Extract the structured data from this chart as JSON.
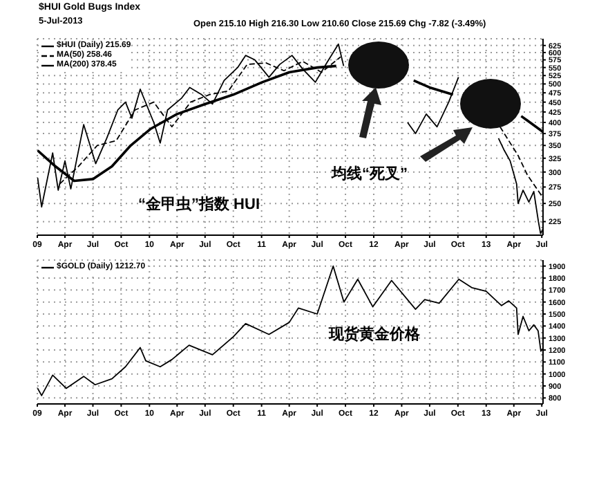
{
  "chart_data": [
    {
      "type": "line",
      "title": "$HUI Gold Bugs Index",
      "subtitle": "5-Jul-2013",
      "annotations": [
        "Open 215.10 High 216.30 Low 210.60 Close 215.69 Chg -7.82 (-3.49%)",
        "“金甲虫”指数 HUI",
        "均线“死叉”"
      ],
      "xlim": [
        "2009-01-01",
        "2013-07-05"
      ],
      "xticks": [
        {
          "value": "2009-01",
          "label": "09"
        },
        {
          "value": "2009-04",
          "label": "Apr"
        },
        {
          "value": "2009-07",
          "label": "Jul"
        },
        {
          "value": "2009-10",
          "label": "Oct"
        },
        {
          "value": "2010-01",
          "label": "10"
        },
        {
          "value": "2010-04",
          "label": "Apr"
        },
        {
          "value": "2010-07",
          "label": "Jul"
        },
        {
          "value": "2010-10",
          "label": "Oct"
        },
        {
          "value": "2011-01",
          "label": "11"
        },
        {
          "value": "2011-04",
          "label": "Apr"
        },
        {
          "value": "2011-07",
          "label": "Jul"
        },
        {
          "value": "2011-10",
          "label": "Oct"
        },
        {
          "value": "2012-01",
          "label": "12"
        },
        {
          "value": "2012-04",
          "label": "Apr"
        },
        {
          "value": "2012-07",
          "label": "Jul"
        },
        {
          "value": "2012-10",
          "label": "Oct"
        },
        {
          "value": "2013-01",
          "label": "13"
        },
        {
          "value": "2013-04",
          "label": "Apr"
        },
        {
          "value": "2013-07",
          "label": "Jul"
        }
      ],
      "ylim": [
        208,
        650
      ],
      "yticks": [
        225,
        250,
        275,
        300,
        325,
        350,
        375,
        400,
        425,
        450,
        475,
        500,
        525,
        550,
        575,
        600,
        625
      ],
      "log": true,
      "grid": true,
      "legend": "top left",
      "marker": "none",
      "series": [
        {
          "name": "$HUI (Daily) 215.69",
          "color": "#000000",
          "line_style": "solid",
          "x": [
            "2009-01-02",
            "2009-01-15",
            "2009-02-20",
            "2009-03-10",
            "2009-04-01",
            "2009-04-20",
            "2009-06-01",
            "2009-07-10",
            "2009-08-15",
            "2009-09-20",
            "2009-10-15",
            "2009-11-05",
            "2009-12-02",
            "2010-01-15",
            "2010-02-05",
            "2010-03-01",
            "2010-04-15",
            "2010-05-12",
            "2010-06-20",
            "2010-07-25",
            "2010-09-01",
            "2010-10-15",
            "2010-11-10",
            "2010-12-10",
            "2011-01-25",
            "2011-03-01",
            "2011-04-10",
            "2011-05-15",
            "2011-06-25",
            "2011-08-01",
            "2011-09-08",
            "2011-09-25",
            "2011-11-15",
            "2012-01-15",
            "2012-03-15",
            "2012-04-20",
            "2012-05-16",
            "2012-06-20",
            "2012-07-25",
            "2012-09-01",
            "2012-10-03",
            "2012-10-25",
            "2012-12-10",
            "2013-01-20",
            "2013-02-10",
            "2013-03-01",
            "2013-03-20",
            "2013-04-10",
            "2013-04-15",
            "2013-05-01",
            "2013-05-20",
            "2013-06-05",
            "2013-06-20",
            "2013-06-27",
            "2013-07-05"
          ],
          "values": [
            290,
            245,
            335,
            270,
            320,
            272,
            395,
            315,
            365,
            430,
            450,
            410,
            485,
            400,
            355,
            430,
            460,
            490,
            470,
            445,
            510,
            550,
            590,
            575,
            520,
            560,
            590,
            545,
            505,
            565,
            630,
            555,
            null,
            null,
            null,
            400,
            375,
            420,
            390,
            450,
            520,
            null,
            null,
            null,
            365,
            340,
            320,
            280,
            250,
            270,
            252,
            268,
            225,
            210,
            215.69
          ]
        },
        {
          "name": "MA(50) 258.46",
          "color": "#000000",
          "line_style": "dashed",
          "x": [
            "2009-03-15",
            "2009-05-15",
            "2009-07-15",
            "2009-09-15",
            "2009-11-15",
            "2010-01-15",
            "2010-03-15",
            "2010-05-15",
            "2010-07-15",
            "2010-09-15",
            "2010-11-15",
            "2011-01-15",
            "2011-03-15",
            "2011-05-15",
            "2011-07-15",
            "2011-09-15",
            "2011-12-01",
            "2013-02-15",
            "2013-04-15",
            "2013-05-15",
            "2013-07-05"
          ],
          "values": [
            280,
            310,
            350,
            360,
            430,
            450,
            390,
            450,
            470,
            480,
            560,
            565,
            540,
            570,
            535,
            585,
            null,
            390,
            330,
            295,
            258.46
          ]
        },
        {
          "name": "MA(200) 378.45",
          "color": "#000000",
          "line_style": "solid",
          "x": [
            "2009-01-02",
            "2009-03-01",
            "2009-05-01",
            "2009-07-01",
            "2009-09-01",
            "2009-11-01",
            "2010-01-04",
            "2010-04-01",
            "2010-07-01",
            "2010-10-01",
            "2011-01-03",
            "2011-04-01",
            "2011-07-01",
            "2011-09-01",
            "2011-12-15",
            "2012-05-10",
            "2012-07-01",
            "2012-09-15",
            "2012-12-15",
            "2013-04-25",
            "2013-07-05"
          ],
          "values": [
            340,
            310,
            285,
            288,
            310,
            350,
            385,
            420,
            445,
            470,
            505,
            535,
            550,
            555,
            null,
            510,
            490,
            470,
            null,
            415,
            378.45
          ]
        }
      ]
    },
    {
      "type": "line",
      "annotations": [
        "现货黄金价格"
      ],
      "xlim": [
        "2009-01-01",
        "2013-07-05"
      ],
      "xticks": [
        {
          "value": "2009-01",
          "label": "09"
        },
        {
          "value": "2009-04",
          "label": "Apr"
        },
        {
          "value": "2009-07",
          "label": "Jul"
        },
        {
          "value": "2009-10",
          "label": "Oct"
        },
        {
          "value": "2010-01",
          "label": "10"
        },
        {
          "value": "2010-04",
          "label": "Apr"
        },
        {
          "value": "2010-07",
          "label": "Jul"
        },
        {
          "value": "2010-10",
          "label": "Oct"
        },
        {
          "value": "2011-01",
          "label": "11"
        },
        {
          "value": "2011-04",
          "label": "Apr"
        },
        {
          "value": "2011-07",
          "label": "Jul"
        },
        {
          "value": "2011-10",
          "label": "Oct"
        },
        {
          "value": "2012-01",
          "label": "12"
        },
        {
          "value": "2012-04",
          "label": "Apr"
        },
        {
          "value": "2012-07",
          "label": "Jul"
        },
        {
          "value": "2012-10",
          "label": "Oct"
        },
        {
          "value": "2013-01",
          "label": "13"
        },
        {
          "value": "2013-04",
          "label": "Apr"
        },
        {
          "value": "2013-07",
          "label": "Jul"
        }
      ],
      "ylim": [
        750,
        1950
      ],
      "yticks": [
        800,
        900,
        1000,
        1100,
        1200,
        1300,
        1400,
        1500,
        1600,
        1700,
        1800,
        1900
      ],
      "grid": true,
      "legend": "top left",
      "marker": "none",
      "series": [
        {
          "name": "$GOLD (Daily) 1212.70",
          "color": "#000000",
          "line_style": "solid",
          "x": [
            "2009-01-02",
            "2009-01-15",
            "2009-02-20",
            "2009-04-05",
            "2009-06-01",
            "2009-07-08",
            "2009-09-01",
            "2009-10-15",
            "2009-12-02",
            "2009-12-20",
            "2010-02-05",
            "2010-03-15",
            "2010-05-10",
            "2010-07-25",
            "2010-10-01",
            "2010-11-10",
            "2011-01-25",
            "2011-04-01",
            "2011-05-01",
            "2011-07-01",
            "2011-08-22",
            "2011-09-26",
            "2011-11-10",
            "2011-12-29",
            "2012-02-28",
            "2012-05-16",
            "2012-06-15",
            "2012-08-01",
            "2012-10-04",
            "2012-11-15",
            "2013-01-01",
            "2013-02-20",
            "2013-03-15",
            "2013-04-10",
            "2013-04-15",
            "2013-05-01",
            "2013-05-20",
            "2013-06-05",
            "2013-06-19",
            "2013-06-28",
            "2013-07-05"
          ],
          "values": [
            880,
            820,
            990,
            880,
            980,
            910,
            960,
            1060,
            1220,
            1110,
            1060,
            1120,
            1240,
            1160,
            1310,
            1420,
            1330,
            1430,
            1550,
            1500,
            1900,
            1600,
            1790,
            1560,
            1780,
            1540,
            1620,
            1590,
            1790,
            1720,
            1690,
            1570,
            1610,
            1550,
            1330,
            1480,
            1360,
            1410,
            1360,
            1190,
            1212.7
          ]
        }
      ]
    }
  ]
}
